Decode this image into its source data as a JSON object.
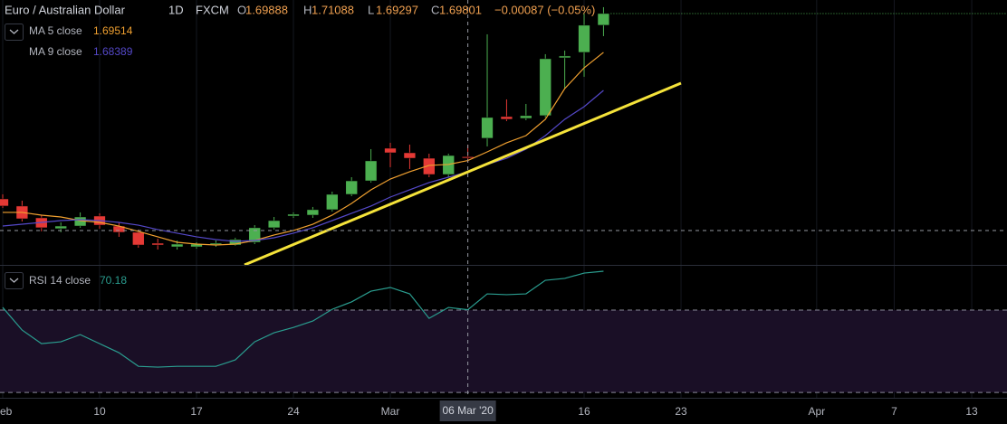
{
  "chart_data": [
    {
      "type": "candlestick",
      "title": "Euro / Australian Dollar",
      "interval": "1D",
      "source": "FXCM",
      "ohlc_labels": [
        "O",
        "H",
        "L",
        "C"
      ],
      "change": "−0.00087 (−0.05%)",
      "x": [
        0,
        1,
        2,
        3,
        4,
        5,
        6,
        7,
        8,
        9,
        10,
        11,
        12,
        13,
        14,
        15,
        16,
        17,
        18,
        19,
        20,
        21,
        22,
        23,
        24,
        25,
        26,
        27,
        28,
        29,
        30,
        31
      ],
      "open": [
        1.6571,
        1.65,
        1.6383,
        1.6276,
        1.6302,
        1.6401,
        1.6302,
        1.624,
        1.6132,
        1.6096,
        1.6096,
        1.6123,
        1.6114,
        1.6141,
        1.6285,
        1.6401,
        1.641,
        1.6464,
        1.6616,
        1.675,
        1.7073,
        1.7028,
        1.6974,
        1.6813,
        1.69888,
        1.7172,
        1.7387,
        1.7369,
        1.7396,
        1.7969,
        1.8023,
        1.8292
      ],
      "high": [
        1.6616,
        1.6553,
        1.641,
        1.6338,
        1.6437,
        1.6428,
        1.6338,
        1.6267,
        1.6177,
        1.6159,
        1.6141,
        1.6159,
        1.6186,
        1.6311,
        1.6392,
        1.6437,
        1.6491,
        1.6643,
        1.6786,
        1.7064,
        1.7127,
        1.7109,
        1.7019,
        1.7019,
        1.71088,
        1.8202,
        1.7557,
        1.7512,
        1.8005,
        1.8041,
        1.8408,
        1.8471
      ],
      "low": [
        1.6482,
        1.6347,
        1.6249,
        1.624,
        1.6285,
        1.6276,
        1.6195,
        1.6087,
        1.6069,
        1.6069,
        1.6078,
        1.6096,
        1.6105,
        1.6123,
        1.6267,
        1.6383,
        1.6383,
        1.6446,
        1.6598,
        1.6733,
        1.6885,
        1.6867,
        1.6786,
        1.6786,
        1.69297,
        1.7091,
        1.7342,
        1.7351,
        1.7378,
        1.7664,
        1.7781,
        1.8184
      ],
      "close": [
        1.65,
        1.6374,
        1.6285,
        1.6302,
        1.6392,
        1.6311,
        1.624,
        1.6114,
        1.6114,
        1.6123,
        1.6123,
        1.6132,
        1.6168,
        1.6285,
        1.6356,
        1.6419,
        1.6464,
        1.6616,
        1.675,
        1.6948,
        1.7028,
        1.6974,
        1.6813,
        1.7001,
        1.69801,
        1.7378,
        1.736,
        1.7396,
        1.796,
        1.7987,
        1.8292,
        1.8408
      ],
      "up_color": "#4caf50",
      "down_color": "#e53935",
      "series": [
        {
          "name": "MA 5 close",
          "color": "#f0a030",
          "values": [
            1.6437,
            1.6437,
            1.641,
            1.6392,
            1.6356,
            1.6338,
            1.6302,
            1.6249,
            1.6195,
            1.6141,
            1.6123,
            1.6114,
            1.6123,
            1.6159,
            1.6213,
            1.6258,
            1.632,
            1.641,
            1.6526,
            1.6661,
            1.6768,
            1.684,
            1.6903,
            1.6912,
            1.69514,
            1.7037,
            1.7127,
            1.7198,
            1.736,
            1.7664,
            1.787,
            1.8023
          ]
        },
        {
          "name": "MA 9 close",
          "color": "#5448c8",
          "values": [
            1.6302,
            1.632,
            1.6338,
            1.6356,
            1.6365,
            1.6356,
            1.6338,
            1.6311,
            1.6267,
            1.6231,
            1.6195,
            1.6168,
            1.615,
            1.6159,
            1.6186,
            1.6231,
            1.6285,
            1.6356,
            1.6428,
            1.65,
            1.6589,
            1.6661,
            1.6733,
            1.6786,
            1.68389,
            1.6912,
            1.6974,
            1.7064,
            1.7198,
            1.736,
            1.7485,
            1.7646
          ]
        }
      ],
      "legend_index": 24,
      "xlim": [
        -0.14,
        51.82
      ],
      "ylim": [
        1.5926,
        1.8542
      ],
      "xticks": [
        {
          "value": 0,
          "label": "Feb"
        },
        {
          "value": 5,
          "label": "10"
        },
        {
          "value": 10,
          "label": "17"
        },
        {
          "value": 15,
          "label": "24"
        },
        {
          "value": 20,
          "label": "Mar"
        },
        {
          "value": 30,
          "label": "16"
        },
        {
          "value": 35,
          "label": "23"
        },
        {
          "value": 42,
          "label": "Apr"
        },
        {
          "value": 46,
          "label": "7"
        },
        {
          "value": 50,
          "label": "13"
        }
      ],
      "grid": true,
      "crosshair": {
        "x": 24,
        "y": 1.6258,
        "label": "06 Mar '20"
      }
    },
    {
      "type": "line",
      "series": [
        {
          "name": "RSI 14 close",
          "color": "#2a9d8f",
          "values": [
            71.3,
            60.3,
            53.7,
            54.6,
            58.1,
            53.7,
            49.3,
            42.7,
            42.3,
            42.7,
            42.7,
            42.7,
            45.8,
            54.6,
            59.0,
            61.6,
            64.7,
            70.4,
            74.0,
            79.2,
            81.0,
            77.9,
            66.0,
            71.3,
            70.18,
            77.9,
            77.5,
            77.9,
            84.5,
            85.4,
            88.0,
            88.9
          ]
        }
      ],
      "ylim": [
        27.4,
        91.1
      ],
      "band": [
        30,
        70
      ],
      "band_color": "#1a0f26"
    }
  ]
}
